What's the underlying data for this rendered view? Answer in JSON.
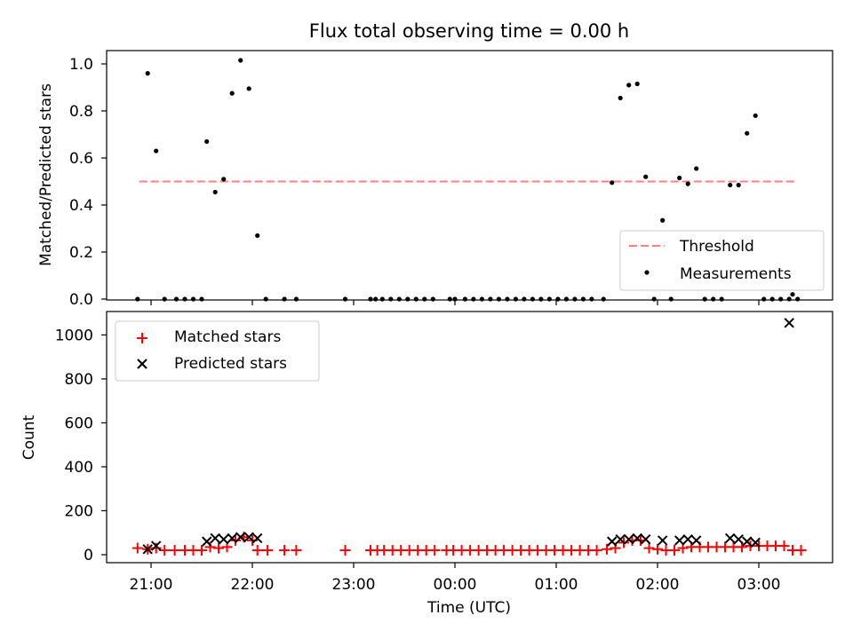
{
  "chart_data": [
    {
      "type": "scatter",
      "title": "Flux total observing time = 0.00 h",
      "xlabel": "",
      "ylabel": "Matched/Predicted stars",
      "ylim": [
        0,
        1.06
      ],
      "yticks": [
        "0.0",
        "0.2",
        "0.4",
        "0.6",
        "0.8",
        "1.0"
      ],
      "xticks": [],
      "legend_position": "bottom-right",
      "series": [
        {
          "name": "Threshold",
          "kind": "dashed-line",
          "color": "#ff7f7f",
          "x_start": "20:53",
          "x_end": "03:23",
          "value": 0.5
        },
        {
          "name": "Measurements",
          "kind": "dots",
          "color": "#000000",
          "points": [
            [
              "20:52",
              0.0
            ],
            [
              "20:58",
              0.96
            ],
            [
              "21:03",
              0.63
            ],
            [
              "21:08",
              0.0
            ],
            [
              "21:15",
              0.0
            ],
            [
              "21:20",
              0.0
            ],
            [
              "21:25",
              0.0
            ],
            [
              "21:30",
              0.0
            ],
            [
              "21:33",
              0.67
            ],
            [
              "21:38",
              0.455
            ],
            [
              "21:43",
              0.51
            ],
            [
              "21:48",
              0.875
            ],
            [
              "21:53",
              1.015
            ],
            [
              "21:58",
              0.895
            ],
            [
              "22:03",
              0.27
            ],
            [
              "22:08",
              0.0
            ],
            [
              "22:19",
              0.0
            ],
            [
              "22:26",
              0.0
            ],
            [
              "22:55",
              0.0
            ],
            [
              "23:10",
              0.0
            ],
            [
              "23:13",
              0.0
            ],
            [
              "23:17",
              0.0
            ],
            [
              "23:22",
              0.0
            ],
            [
              "23:27",
              0.0
            ],
            [
              "23:32",
              0.0
            ],
            [
              "23:37",
              0.0
            ],
            [
              "23:42",
              0.0
            ],
            [
              "23:47",
              0.0
            ],
            [
              "23:57",
              0.0
            ],
            [
              "00:00",
              0.0
            ],
            [
              "00:06",
              0.0
            ],
            [
              "00:11",
              0.0
            ],
            [
              "00:16",
              0.0
            ],
            [
              "00:21",
              0.0
            ],
            [
              "00:26",
              0.0
            ],
            [
              "00:31",
              0.0
            ],
            [
              "00:36",
              0.0
            ],
            [
              "00:41",
              0.0
            ],
            [
              "00:46",
              0.0
            ],
            [
              "00:51",
              0.0
            ],
            [
              "00:56",
              0.0
            ],
            [
              "01:01",
              0.0
            ],
            [
              "01:06",
              0.0
            ],
            [
              "01:11",
              0.0
            ],
            [
              "01:16",
              0.0
            ],
            [
              "01:21",
              0.0
            ],
            [
              "01:28",
              0.0
            ],
            [
              "01:33",
              0.495
            ],
            [
              "01:38",
              0.855
            ],
            [
              "01:43",
              0.91
            ],
            [
              "01:48",
              0.915
            ],
            [
              "01:53",
              0.52
            ],
            [
              "01:58",
              0.0
            ],
            [
              "02:03",
              0.335
            ],
            [
              "02:08",
              0.0
            ],
            [
              "02:13",
              0.515
            ],
            [
              "02:18",
              0.49
            ],
            [
              "02:23",
              0.555
            ],
            [
              "02:28",
              0.0
            ],
            [
              "02:33",
              0.0
            ],
            [
              "02:38",
              0.0
            ],
            [
              "02:43",
              0.485
            ],
            [
              "02:48",
              0.485
            ],
            [
              "02:53",
              0.705
            ],
            [
              "02:58",
              0.78
            ],
            [
              "03:03",
              0.0
            ],
            [
              "03:08",
              0.0
            ],
            [
              "03:13",
              0.0
            ],
            [
              "03:18",
              0.0
            ],
            [
              "03:20",
              0.02
            ],
            [
              "03:23",
              0.0
            ]
          ]
        }
      ]
    },
    {
      "type": "scatter",
      "title": "",
      "xlabel": "Time (UTC)",
      "ylabel": "Count",
      "ylim": [
        -30,
        1100
      ],
      "yticks": [
        "0",
        "200",
        "400",
        "600",
        "800",
        "1000"
      ],
      "xticks": [
        "21:00",
        "22:00",
        "23:00",
        "00:00",
        "01:00",
        "02:00",
        "03:00"
      ],
      "legend_position": "top-left",
      "series": [
        {
          "name": "Matched stars",
          "marker": "plus",
          "color": "#ff0000",
          "points": [
            [
              "20:52",
              30
            ],
            [
              "20:58",
              25
            ],
            [
              "21:03",
              30
            ],
            [
              "21:08",
              20
            ],
            [
              "21:14",
              20
            ],
            [
              "21:20",
              20
            ],
            [
              "21:25",
              20
            ],
            [
              "21:30",
              20
            ],
            [
              "21:35",
              35
            ],
            [
              "21:40",
              30
            ],
            [
              "21:45",
              35
            ],
            [
              "21:50",
              65
            ],
            [
              "21:55",
              80
            ],
            [
              "22:00",
              65
            ],
            [
              "22:03",
              20
            ],
            [
              "22:09",
              20
            ],
            [
              "22:19",
              20
            ],
            [
              "22:26",
              20
            ],
            [
              "22:55",
              20
            ],
            [
              "23:10",
              20
            ],
            [
              "23:14",
              20
            ],
            [
              "23:18",
              20
            ],
            [
              "23:23",
              20
            ],
            [
              "23:28",
              20
            ],
            [
              "23:33",
              20
            ],
            [
              "23:38",
              20
            ],
            [
              "23:43",
              20
            ],
            [
              "23:48",
              20
            ],
            [
              "23:55",
              20
            ],
            [
              "23:59",
              20
            ],
            [
              "00:04",
              20
            ],
            [
              "00:09",
              20
            ],
            [
              "00:14",
              20
            ],
            [
              "00:19",
              20
            ],
            [
              "00:24",
              20
            ],
            [
              "00:29",
              20
            ],
            [
              "00:34",
              20
            ],
            [
              "00:39",
              20
            ],
            [
              "00:44",
              20
            ],
            [
              "00:49",
              20
            ],
            [
              "00:54",
              20
            ],
            [
              "00:59",
              20
            ],
            [
              "01:04",
              20
            ],
            [
              "01:09",
              20
            ],
            [
              "01:14",
              20
            ],
            [
              "01:19",
              20
            ],
            [
              "01:24",
              20
            ],
            [
              "01:30",
              25
            ],
            [
              "01:35",
              30
            ],
            [
              "01:40",
              55
            ],
            [
              "01:45",
              65
            ],
            [
              "01:50",
              65
            ],
            [
              "01:55",
              30
            ],
            [
              "02:00",
              25
            ],
            [
              "02:05",
              20
            ],
            [
              "02:10",
              20
            ],
            [
              "02:15",
              30
            ],
            [
              "02:20",
              35
            ],
            [
              "02:25",
              35
            ],
            [
              "02:30",
              35
            ],
            [
              "02:35",
              35
            ],
            [
              "02:40",
              35
            ],
            [
              "02:45",
              35
            ],
            [
              "02:50",
              35
            ],
            [
              "02:55",
              40
            ],
            [
              "03:00",
              40
            ],
            [
              "03:05",
              40
            ],
            [
              "03:10",
              40
            ],
            [
              "03:15",
              40
            ],
            [
              "03:20",
              20
            ],
            [
              "03:25",
              20
            ]
          ]
        },
        {
          "name": "Predicted stars",
          "marker": "x",
          "color": "#000000",
          "points": [
            [
              "20:58",
              25
            ],
            [
              "21:03",
              40
            ],
            [
              "21:33",
              60
            ],
            [
              "21:38",
              75
            ],
            [
              "21:43",
              70
            ],
            [
              "21:48",
              75
            ],
            [
              "21:53",
              80
            ],
            [
              "21:58",
              80
            ],
            [
              "22:03",
              75
            ],
            [
              "01:33",
              60
            ],
            [
              "01:38",
              70
            ],
            [
              "01:43",
              70
            ],
            [
              "01:48",
              75
            ],
            [
              "01:53",
              70
            ],
            [
              "02:03",
              65
            ],
            [
              "02:13",
              65
            ],
            [
              "02:18",
              70
            ],
            [
              "02:23",
              65
            ],
            [
              "02:43",
              75
            ],
            [
              "02:48",
              70
            ],
            [
              "02:53",
              60
            ],
            [
              "02:58",
              55
            ],
            [
              "03:18",
              1055
            ]
          ]
        }
      ]
    }
  ]
}
